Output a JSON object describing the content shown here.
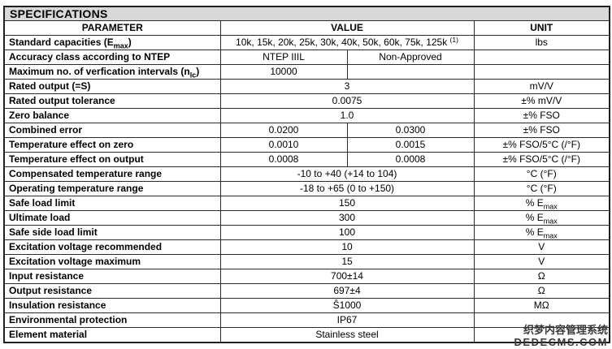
{
  "title": "SPECIFICATIONS",
  "columns": {
    "parameter": "PARAMETER",
    "value": "VALUE",
    "unit": "UNIT"
  },
  "watermark": {
    "line1": "织梦内容管理系统",
    "line2": "DEDECMS.COM"
  },
  "colors": {
    "title_band": "#d8d8d8",
    "border": "#2b2b2b",
    "text": "#000000",
    "watermark": "#3a3a3a"
  },
  "rows": [
    {
      "param": [
        {
          "text": "Standard capacities (E"
        },
        {
          "text": "max",
          "style": "sub"
        },
        {
          "text": ")"
        }
      ],
      "value": {
        "span": "full",
        "segments": [
          {
            "text": "10k, 15k, 20k, 25k, 30k, 40k, 50k, 60k, 75k, 125k "
          },
          {
            "text": "(1)",
            "style": "sup"
          }
        ]
      },
      "unit": [
        {
          "text": "lbs"
        }
      ]
    },
    {
      "param": [
        {
          "text": "Accuracy class according to NTEP"
        }
      ],
      "value": {
        "span": "split",
        "left": [
          {
            "text": "NTEP IIIL"
          }
        ],
        "right": [
          {
            "text": "Non-Approved"
          }
        ]
      },
      "unit": []
    },
    {
      "param": [
        {
          "text": "Maximum no. of verfication intervals (n"
        },
        {
          "text": "lc",
          "style": "sub"
        },
        {
          "text": ")"
        }
      ],
      "value": {
        "span": "split",
        "left": [
          {
            "text": "10000"
          }
        ],
        "right": []
      },
      "unit": []
    },
    {
      "param": [
        {
          "text": "Rated output (=S)"
        }
      ],
      "value": {
        "span": "full",
        "segments": [
          {
            "text": "3"
          }
        ]
      },
      "unit": [
        {
          "text": "mV/V"
        }
      ]
    },
    {
      "param": [
        {
          "text": "Rated output tolerance"
        }
      ],
      "value": {
        "span": "full",
        "segments": [
          {
            "text": "0.0075"
          }
        ]
      },
      "unit": [
        {
          "text": "±% mV/V"
        }
      ]
    },
    {
      "param": [
        {
          "text": "Zero balance"
        }
      ],
      "value": {
        "span": "full",
        "segments": [
          {
            "text": "1.0"
          }
        ]
      },
      "unit": [
        {
          "text": "±% FSO"
        }
      ]
    },
    {
      "param": [
        {
          "text": "Combined error"
        }
      ],
      "value": {
        "span": "split",
        "left": [
          {
            "text": "0.0200"
          }
        ],
        "right": [
          {
            "text": "0.0300"
          }
        ]
      },
      "unit": [
        {
          "text": "±% FSO"
        }
      ]
    },
    {
      "param": [
        {
          "text": "Temperature effect on zero"
        }
      ],
      "value": {
        "span": "split",
        "left": [
          {
            "text": "0.0010"
          }
        ],
        "right": [
          {
            "text": "0.0015"
          }
        ]
      },
      "unit": [
        {
          "text": "±% FSO/5°C (/°F)"
        }
      ]
    },
    {
      "param": [
        {
          "text": "Temperature effect on output"
        }
      ],
      "value": {
        "span": "split",
        "left": [
          {
            "text": "0.0008"
          }
        ],
        "right": [
          {
            "text": "0.0008"
          }
        ]
      },
      "unit": [
        {
          "text": "±% FSO/5°C (/°F)"
        }
      ]
    },
    {
      "param": [
        {
          "text": "Compensated temperature range"
        }
      ],
      "value": {
        "span": "full",
        "segments": [
          {
            "text": "-10 to +40 (+14 to 104)"
          }
        ]
      },
      "unit": [
        {
          "text": "°C (°F)"
        }
      ]
    },
    {
      "param": [
        {
          "text": "Operating temperature range"
        }
      ],
      "value": {
        "span": "full",
        "segments": [
          {
            "text": "-18 to +65 (0 to +150)"
          }
        ]
      },
      "unit": [
        {
          "text": "°C (°F)"
        }
      ]
    },
    {
      "param": [
        {
          "text": "Safe load limit"
        }
      ],
      "value": {
        "span": "full",
        "segments": [
          {
            "text": "150"
          }
        ]
      },
      "unit": [
        {
          "text": "% E"
        },
        {
          "text": "max",
          "style": "sub"
        }
      ]
    },
    {
      "param": [
        {
          "text": "Ultimate load"
        }
      ],
      "value": {
        "span": "full",
        "segments": [
          {
            "text": "300"
          }
        ]
      },
      "unit": [
        {
          "text": "% E"
        },
        {
          "text": "max",
          "style": "sub"
        }
      ]
    },
    {
      "param": [
        {
          "text": "Safe side load limit"
        }
      ],
      "value": {
        "span": "full",
        "segments": [
          {
            "text": "100"
          }
        ]
      },
      "unit": [
        {
          "text": "% E"
        },
        {
          "text": "max",
          "style": "sub"
        }
      ]
    },
    {
      "param": [
        {
          "text": "Excitation voltage recommended"
        }
      ],
      "value": {
        "span": "full",
        "segments": [
          {
            "text": "10"
          }
        ]
      },
      "unit": [
        {
          "text": "V"
        }
      ]
    },
    {
      "param": [
        {
          "text": "Excitation voltage maximum"
        }
      ],
      "value": {
        "span": "full",
        "segments": [
          {
            "text": "15"
          }
        ]
      },
      "unit": [
        {
          "text": "V"
        }
      ]
    },
    {
      "param": [
        {
          "text": "Input resistance"
        }
      ],
      "value": {
        "span": "full",
        "segments": [
          {
            "text": "700±14"
          }
        ]
      },
      "unit": [
        {
          "text": "Ω"
        }
      ]
    },
    {
      "param": [
        {
          "text": "Output resistance"
        }
      ],
      "value": {
        "span": "full",
        "segments": [
          {
            "text": "697±4"
          }
        ]
      },
      "unit": [
        {
          "text": "Ω"
        }
      ]
    },
    {
      "param": [
        {
          "text": "Insulation resistance"
        }
      ],
      "value": {
        "span": "full",
        "segments": [
          {
            "text": "Ŝ1000"
          }
        ]
      },
      "unit": [
        {
          "text": "MΩ"
        }
      ]
    },
    {
      "param": [
        {
          "text": "Environmental protection"
        }
      ],
      "value": {
        "span": "full",
        "segments": [
          {
            "text": "IP67"
          }
        ]
      },
      "unit": []
    },
    {
      "param": [
        {
          "text": "Element material"
        }
      ],
      "value": {
        "span": "full",
        "segments": [
          {
            "text": "Stainless steel"
          }
        ]
      },
      "unit": []
    }
  ]
}
